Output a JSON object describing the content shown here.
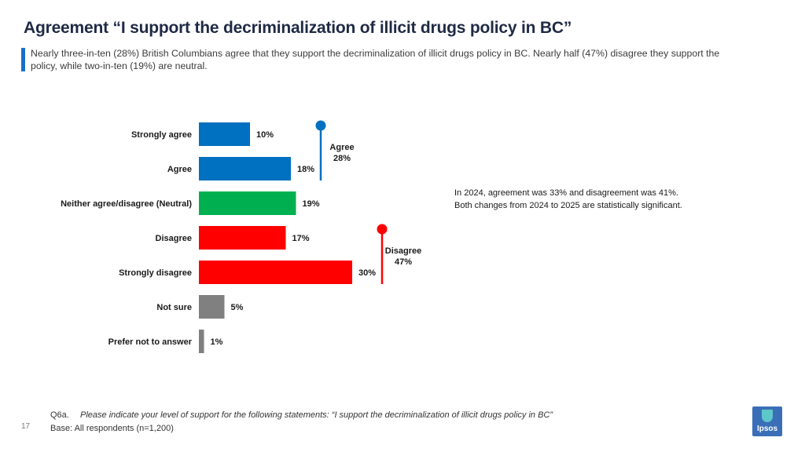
{
  "title": "Agreement “I support the decriminalization of illicit drugs policy in BC”",
  "subtitle": "Nearly three-in-ten (28%) British Columbians agree that they support the decriminalization of illicit drugs policy in BC. Nearly half (47%) disagree they support the policy, while two-in-ten (19%) are neutral.",
  "colors": {
    "agree": "#0070c0",
    "neutral": "#00b050",
    "disagree": "#ff0000",
    "other": "#808080",
    "title": "#1f2a44",
    "accent": "#1a6fc9"
  },
  "chart_data": {
    "type": "bar",
    "orientation": "horizontal",
    "categories": [
      "Strongly agree",
      "Agree",
      "Neither agree/disagree (Neutral)",
      "Disagree",
      "Strongly disagree",
      "Not sure",
      "Prefer not to answer"
    ],
    "values": [
      10,
      18,
      19,
      17,
      30,
      5,
      1
    ],
    "value_labels": [
      "10%",
      "18%",
      "19%",
      "17%",
      "30%",
      "5%",
      "1%"
    ],
    "color_keys": [
      "agree",
      "agree",
      "neutral",
      "disagree",
      "disagree",
      "other",
      "other"
    ],
    "xlim": [
      0,
      100
    ],
    "groups": [
      {
        "name": "Agree",
        "value_label": "28%",
        "color_key": "agree",
        "from_index": 0,
        "to_index": 1
      },
      {
        "name": "Disagree",
        "value_label": "47%",
        "color_key": "disagree",
        "from_index": 3,
        "to_index": 4
      }
    ]
  },
  "note": {
    "line1": "In 2024, agreement was 33% and disagreement was 41%.",
    "line2": "Both changes from 2024 to 2025 are statistically significant."
  },
  "footnote": {
    "question_id": "Q6a.",
    "question_text": "Please indicate your level of support for the following statements: “I support the decriminalization of illicit drugs policy in BC”",
    "base": "Base: All respondents (n=1,200)"
  },
  "page_number": "17",
  "logo": {
    "text": "Ipsos"
  }
}
